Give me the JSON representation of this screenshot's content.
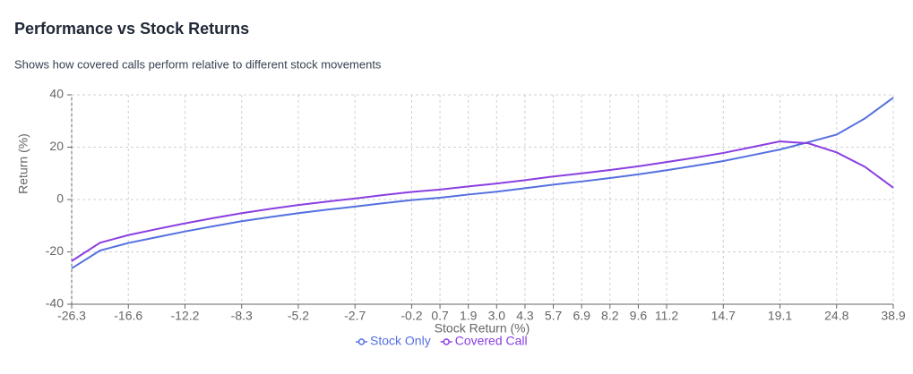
{
  "chart_data": {
    "type": "line",
    "title": "Performance vs Stock Returns",
    "subtitle": "Shows how covered calls perform relative to different stock movements",
    "x_label": "Stock Return (%)",
    "y_label": "Return (%)",
    "categories": [
      "-26.3",
      null,
      "-16.6",
      null,
      "-12.2",
      null,
      "-8.3",
      null,
      "-5.2",
      null,
      "-2.7",
      null,
      "-0.2",
      "0.7",
      "1.9",
      "3.0",
      "4.3",
      "5.7",
      "6.9",
      "8.2",
      "9.6",
      "11.2",
      null,
      "14.7",
      null,
      "19.1",
      null,
      "24.8",
      null,
      "38.9"
    ],
    "series": [
      {
        "name": "Stock Only",
        "color": "#5470e0",
        "values": [
          -26.3,
          -19.5,
          -16.6,
          -14.4,
          -12.2,
          -10.2,
          -8.3,
          -6.7,
          -5.2,
          -3.9,
          -2.7,
          -1.4,
          -0.2,
          0.7,
          1.9,
          3.0,
          4.3,
          5.7,
          6.9,
          8.2,
          9.6,
          11.2,
          12.9,
          14.7,
          16.9,
          19.1,
          21.9,
          24.8,
          31.0,
          38.9
        ]
      },
      {
        "name": "Covered Call",
        "color": "#8a3fe0",
        "values": [
          -23.5,
          -16.5,
          -13.6,
          -11.3,
          -9.1,
          -7.1,
          -5.2,
          -3.6,
          -2.1,
          -0.8,
          0.4,
          1.7,
          2.9,
          3.8,
          5.0,
          6.1,
          7.4,
          8.8,
          10.0,
          11.3,
          12.7,
          14.3,
          16.0,
          17.8,
          20.0,
          22.2,
          21.5,
          18.0,
          12.5,
          4.5
        ]
      }
    ],
    "ylim": [
      -40,
      40
    ],
    "yticks": [
      -40,
      -20,
      0,
      20,
      40
    ],
    "grid": true
  }
}
